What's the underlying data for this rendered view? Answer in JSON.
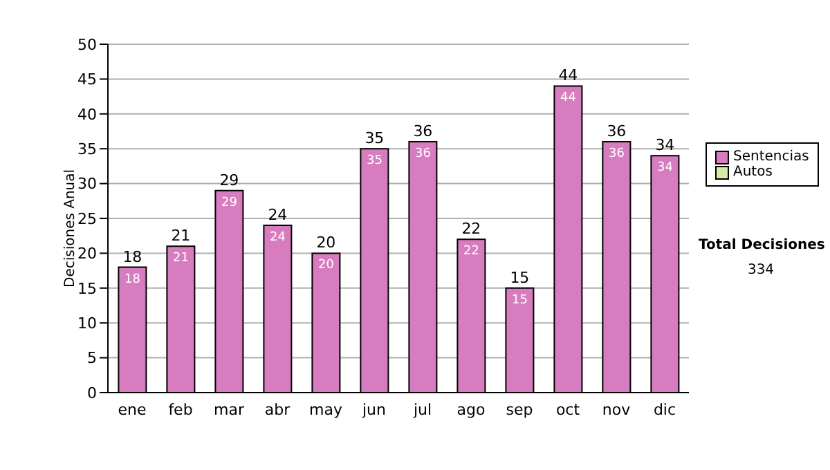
{
  "chart_data": {
    "type": "bar",
    "ylabel": "Decisiones Anual",
    "categories": [
      "ene",
      "feb",
      "mar",
      "abr",
      "may",
      "jun",
      "jul",
      "ago",
      "sep",
      "oct",
      "nov",
      "dic"
    ],
    "series": [
      {
        "name": "Sentencias",
        "color": "#d87cc0",
        "values": [
          18,
          21,
          29,
          24,
          20,
          35,
          36,
          22,
          15,
          44,
          36,
          34
        ],
        "value_labels": [
          "18",
          "21",
          "29",
          "24",
          "20",
          "35",
          "36",
          "22",
          "15",
          "44",
          "36",
          "34"
        ]
      },
      {
        "name": "Autos",
        "color": "#d8eca0",
        "values": [
          0,
          0,
          0,
          0,
          0,
          0,
          0,
          0,
          0,
          0,
          0,
          0
        ]
      }
    ],
    "stacked": true,
    "ylim": [
      0,
      50
    ],
    "yticks": [
      0,
      5,
      10,
      15,
      20,
      25,
      30,
      35,
      40,
      45,
      50
    ],
    "grid": "y",
    "legend": "right",
    "totals": [
      "18",
      "21",
      "29",
      "24",
      "20",
      "35",
      "36",
      "22",
      "15",
      "44",
      "36",
      "34"
    ],
    "annotations": [
      "Total Decisiones",
      "334"
    ]
  }
}
